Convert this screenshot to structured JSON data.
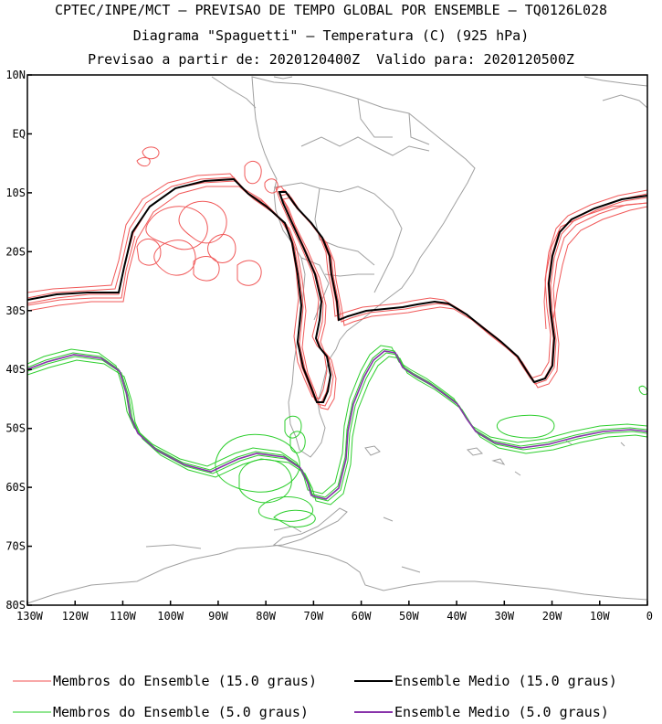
{
  "header": {
    "line1": "CPTEC/INPE/MCT – PREVISAO DE TEMPO GLOBAL POR ENSEMBLE – TQ0126L028",
    "line2": "Diagrama \"Spaguetti\" – Temperatura (C) (925 hPa)",
    "line3": "Previsao a partir de: 2020120400Z  Valido para: 2020120500Z"
  },
  "map": {
    "lon_range": [
      -130,
      0
    ],
    "lat_range": [
      -80,
      10
    ],
    "lat_labels": [
      "10N",
      "EQ",
      "10S",
      "20S",
      "30S",
      "40S",
      "50S",
      "60S",
      "70S",
      "80S"
    ],
    "lat_values": [
      10,
      0,
      -10,
      -20,
      -30,
      -40,
      -50,
      -60,
      -70,
      -80
    ],
    "lon_labels": [
      "130W",
      "120W",
      "110W",
      "100W",
      "90W",
      "80W",
      "70W",
      "60W",
      "50W",
      "40W",
      "30W",
      "20W",
      "10W",
      "0"
    ],
    "lon_values": [
      -130,
      -120,
      -110,
      -100,
      -90,
      -80,
      -70,
      -60,
      -50,
      -40,
      -30,
      -20,
      -10,
      0
    ],
    "colors": {
      "members_15": "#f05050",
      "mean_15": "#000000",
      "members_5": "#22cc22",
      "mean_5": "#8833aa",
      "coast": "#a0a0a0"
    }
  },
  "legend": {
    "members_15": "Membros do Ensemble (15.0 graus)",
    "mean_15": "Ensemble Medio (15.0 graus)",
    "members_5": "Membros do Ensemble (5.0 graus)",
    "mean_5": "Ensemble Medio (5.0 graus)"
  }
}
